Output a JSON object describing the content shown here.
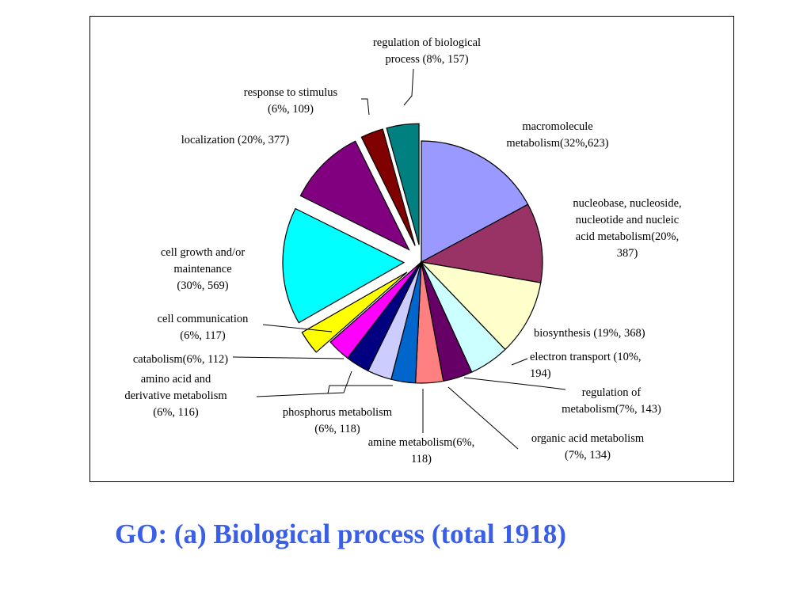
{
  "caption": "GO: (a) Biological process (total 1918)",
  "chart_data": {
    "type": "pie",
    "title": "",
    "unit": "genes",
    "slices": [
      {
        "id": "macromolecule",
        "label_lines": [
          "macromolecule",
          "metabolism(32%,623)"
        ],
        "percent": 32,
        "count": 623,
        "color": "#9999ff",
        "exploded": false
      },
      {
        "id": "nucleobase",
        "label_lines": [
          "nucleobase, nucleoside,",
          "nucleotide and nucleic",
          "acid metabolism(20%,",
          "387)"
        ],
        "percent": 20,
        "count": 387,
        "color": "#993366",
        "exploded": false
      },
      {
        "id": "biosynthesis",
        "label_lines": [
          "biosynthesis (19%, 368)"
        ],
        "percent": 19,
        "count": 368,
        "color": "#ffffcc",
        "exploded": false
      },
      {
        "id": "electron-transport",
        "label_lines": [
          "electron transport (10%,",
          "194)"
        ],
        "percent": 10,
        "count": 194,
        "color": "#ccffff",
        "exploded": false
      },
      {
        "id": "regulation-of-metabolism",
        "label_lines": [
          "regulation of",
          "metabolism(7%, 143)"
        ],
        "percent": 7,
        "count": 143,
        "color": "#660066",
        "exploded": false
      },
      {
        "id": "organic-acid",
        "label_lines": [
          "organic acid metabolism",
          "(7%, 134)"
        ],
        "percent": 7,
        "count": 134,
        "color": "#ff8080",
        "exploded": false
      },
      {
        "id": "amine",
        "label_lines": [
          "amine metabolism(6%,",
          "118)"
        ],
        "percent": 6,
        "count": 118,
        "color": "#0066cc",
        "exploded": false
      },
      {
        "id": "phosphorus",
        "label_lines": [
          "phosphorus metabolism",
          "(6%, 118)"
        ],
        "percent": 6,
        "count": 118,
        "color": "#ccccff",
        "exploded": false
      },
      {
        "id": "amino-acid",
        "label_lines": [
          "amino acid and",
          "derivative metabolism",
          "(6%, 116)"
        ],
        "percent": 6,
        "count": 116,
        "color": "#000080",
        "exploded": false
      },
      {
        "id": "catabolism",
        "label_lines": [
          "catabolism(6%, 112)"
        ],
        "percent": 6,
        "count": 112,
        "color": "#ff00ff",
        "exploded": false
      },
      {
        "id": "cell-communication",
        "label_lines": [
          "cell communication",
          "(6%, 117)"
        ],
        "percent": 6,
        "count": 117,
        "color": "#ffff00",
        "exploded": true
      },
      {
        "id": "cell-growth",
        "label_lines": [
          "cell growth and/or",
          "maintenance",
          "(30%, 569)"
        ],
        "percent": 30,
        "count": 569,
        "color": "#00ffff",
        "exploded": true
      },
      {
        "id": "localization",
        "label_lines": [
          "localization (20%, 377)"
        ],
        "percent": 20,
        "count": 377,
        "color": "#800080",
        "exploded": true
      },
      {
        "id": "response-to-stimulus",
        "label_lines": [
          "response to stimulus",
          "(6%, 109)"
        ],
        "percent": 6,
        "count": 109,
        "color": "#800000",
        "exploded": true
      },
      {
        "id": "regulation-of-biological-process",
        "label_lines": [
          "regulation of biological",
          "process (8%, 157)"
        ],
        "percent": 8,
        "count": 157,
        "color": "#008080",
        "exploded": true
      }
    ]
  }
}
